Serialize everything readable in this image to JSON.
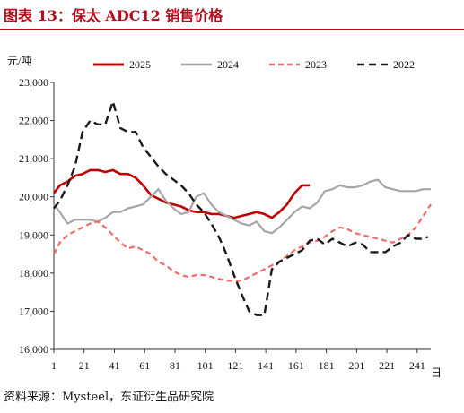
{
  "title": "图表 13：保太 ADC12 销售价格",
  "source": "资料来源：Mysteel，东证衍生品研究院",
  "colors": {
    "accent": "#b40e1e",
    "2025": "#c00000",
    "2024": "#a6a6a6",
    "2023": "#f26b6b",
    "2022": "#1a1a1a"
  },
  "chart_data": {
    "type": "line",
    "ylabel": "元/吨",
    "xlabel": "日",
    "ylim": [
      16000,
      23000
    ],
    "xlim": [
      1,
      250
    ],
    "y_ticks": [
      16000,
      17000,
      18000,
      19000,
      20000,
      21000,
      22000,
      23000
    ],
    "y_tick_labels": [
      "16,000",
      "17,000",
      "18,000",
      "19,000",
      "20,000",
      "21,000",
      "22,000",
      "23,000"
    ],
    "x_ticks": [
      1,
      21,
      41,
      61,
      81,
      101,
      121,
      141,
      161,
      181,
      201,
      221,
      241
    ],
    "x_tick_labels": [
      "1",
      "21",
      "41",
      "61",
      "81",
      "101",
      "121",
      "141",
      "161",
      "181",
      "201",
      "221",
      "241"
    ],
    "legend_position": "top",
    "series": [
      {
        "name": "2025",
        "color": "#c00000",
        "dash": "solid",
        "x": [
          1,
          5,
          10,
          15,
          20,
          25,
          30,
          35,
          40,
          45,
          50,
          55,
          60,
          65,
          70,
          75,
          80,
          85,
          90,
          95,
          100,
          105,
          110,
          115,
          120,
          125,
          130,
          135,
          140,
          145,
          150,
          155,
          160,
          165,
          170
        ],
        "y": [
          20100,
          20300,
          20400,
          20550,
          20600,
          20700,
          20700,
          20650,
          20700,
          20600,
          20600,
          20500,
          20300,
          20050,
          19950,
          19850,
          19800,
          19750,
          19650,
          19600,
          19600,
          19550,
          19550,
          19500,
          19450,
          19500,
          19550,
          19600,
          19550,
          19450,
          19600,
          19800,
          20100,
          20300,
          20300
        ]
      },
      {
        "name": "2024",
        "color": "#a6a6a6",
        "dash": "solid",
        "x": [
          1,
          5,
          10,
          15,
          20,
          25,
          30,
          35,
          40,
          45,
          50,
          55,
          60,
          65,
          70,
          75,
          80,
          85,
          90,
          95,
          100,
          105,
          110,
          115,
          120,
          125,
          130,
          135,
          140,
          145,
          150,
          155,
          160,
          165,
          170,
          175,
          180,
          185,
          190,
          195,
          200,
          205,
          210,
          215,
          220,
          225,
          230,
          235,
          240,
          245,
          250
        ],
        "y": [
          19800,
          19600,
          19300,
          19400,
          19400,
          19400,
          19350,
          19450,
          19600,
          19600,
          19700,
          19750,
          19800,
          20000,
          20200,
          19900,
          19700,
          19550,
          19600,
          20000,
          20100,
          19800,
          19600,
          19500,
          19400,
          19300,
          19250,
          19350,
          19100,
          19050,
          19200,
          19400,
          19600,
          19750,
          19700,
          19850,
          20150,
          20200,
          20300,
          20250,
          20250,
          20300,
          20400,
          20450,
          20250,
          20200,
          20150,
          20150,
          20150,
          20200,
          20200
        ]
      },
      {
        "name": "2023",
        "color": "#f26b6b",
        "dash": "dashed",
        "x": [
          1,
          5,
          10,
          15,
          20,
          25,
          30,
          35,
          40,
          45,
          50,
          55,
          60,
          65,
          70,
          75,
          80,
          85,
          90,
          95,
          100,
          105,
          110,
          115,
          120,
          125,
          130,
          135,
          140,
          145,
          150,
          155,
          160,
          165,
          170,
          175,
          180,
          185,
          190,
          195,
          200,
          205,
          210,
          215,
          220,
          225,
          230,
          235,
          240,
          245,
          250
        ],
        "y": [
          18500,
          18800,
          19000,
          19100,
          19200,
          19300,
          19350,
          19200,
          19000,
          18800,
          18650,
          18700,
          18600,
          18500,
          18300,
          18200,
          18050,
          17950,
          17900,
          17950,
          17950,
          17900,
          17850,
          17800,
          17800,
          17800,
          17900,
          18000,
          18100,
          18200,
          18300,
          18450,
          18600,
          18700,
          18800,
          18850,
          18950,
          19100,
          19200,
          19150,
          19050,
          19000,
          18950,
          18900,
          18850,
          18800,
          18900,
          19000,
          19200,
          19500,
          19800
        ]
      },
      {
        "name": "2022",
        "color": "#1a1a1a",
        "dash": "dashed",
        "x": [
          1,
          5,
          10,
          15,
          20,
          25,
          30,
          35,
          40,
          45,
          50,
          55,
          60,
          65,
          70,
          75,
          80,
          85,
          90,
          95,
          100,
          105,
          110,
          115,
          120,
          125,
          130,
          135,
          140,
          145,
          150,
          155,
          160,
          165,
          170,
          175,
          180,
          185,
          190,
          195,
          200,
          205,
          210,
          215,
          220,
          225,
          230,
          235,
          240,
          245,
          248
        ],
        "y": [
          19700,
          19900,
          20300,
          20800,
          21700,
          22000,
          21900,
          21900,
          22500,
          21800,
          21700,
          21700,
          21300,
          21050,
          20800,
          20600,
          20450,
          20300,
          20100,
          19800,
          19600,
          19300,
          18950,
          18500,
          17950,
          17450,
          17000,
          16900,
          16900,
          18100,
          18300,
          18400,
          18500,
          18600,
          18850,
          18900,
          18750,
          18900,
          18800,
          18700,
          18800,
          18750,
          18550,
          18550,
          18550,
          18700,
          18800,
          19000,
          18900,
          18900,
          18950
        ]
      }
    ]
  }
}
